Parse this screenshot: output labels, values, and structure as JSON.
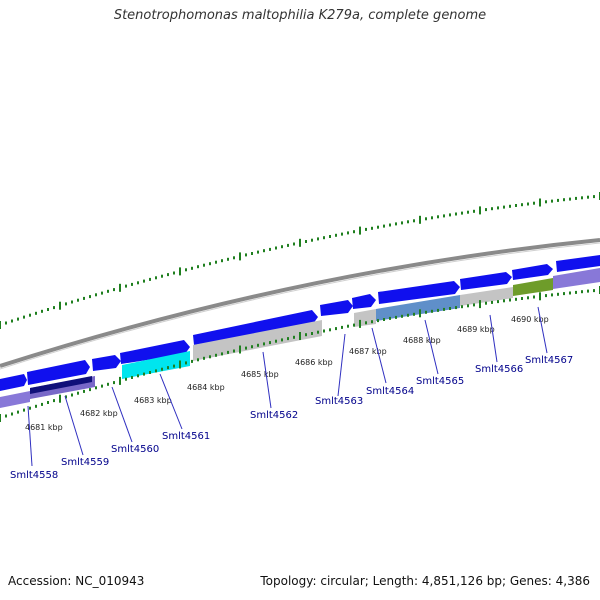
{
  "title": "Stenotrophomonas maltophilia K279a, complete genome",
  "footer": {
    "accession": "Accession: NC_010943",
    "summary": "Topology: circular; Length: 4,851,126 bp; Genes: 4,386"
  },
  "colors": {
    "background": "#ffffff",
    "backbone": "#8a8a8a",
    "gene_forward": "#1010ee",
    "gene_reverse": "#8878d8",
    "tick": "#1f7f1f",
    "label": "#00008b"
  },
  "scale_labels": [
    "4681 kbp",
    "4682 kbp",
    "4683 kbp",
    "4684 kbp",
    "4685 kbp",
    "4686 kbp",
    "4687 kbp",
    "4688 kbp",
    "4689 kbp",
    "4690 kbp"
  ],
  "gene_labels": [
    "Smlt4558",
    "Smlt4559",
    "Smlt4560",
    "Smlt4561",
    "Smlt4562",
    "Smlt4563",
    "Smlt4564",
    "Smlt4565",
    "Smlt4566",
    "Smlt4567"
  ]
}
